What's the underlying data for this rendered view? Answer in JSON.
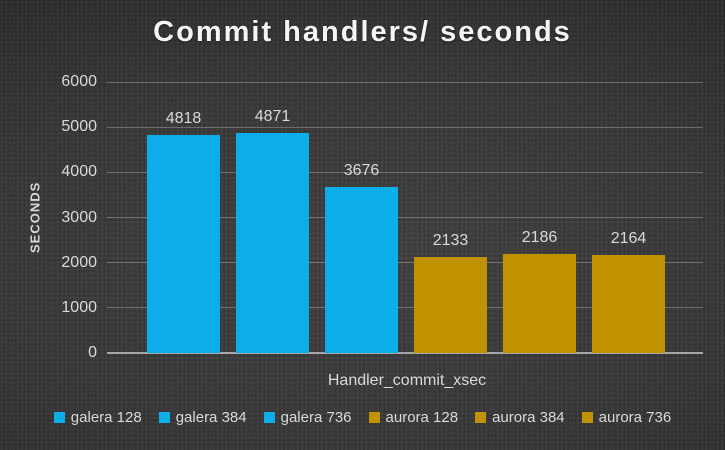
{
  "title": "Commit handlers/ seconds",
  "y_axis": {
    "title": "SECONDS"
  },
  "x_axis": {
    "category_label": "Handler_commit_xsec"
  },
  "legend": {
    "position": "bottom",
    "items": [
      {
        "label": "galera 128",
        "color": "#0CAEEA"
      },
      {
        "label": "galera 384",
        "color": "#0CAEEA"
      },
      {
        "label": "galera 736",
        "color": "#0CAEEA"
      },
      {
        "label": "aurora 128",
        "color": "#C19200"
      },
      {
        "label": "aurora 384",
        "color": "#C19200"
      },
      {
        "label": "aurora 736",
        "color": "#C19200"
      }
    ]
  },
  "chart_data": {
    "type": "bar",
    "title": "Commit handlers/ seconds",
    "categories": [
      "Handler_commit_xsec"
    ],
    "series": [
      {
        "name": "galera 128",
        "color": "#0CAEEA",
        "values": [
          4818
        ]
      },
      {
        "name": "galera 384",
        "color": "#0CAEEA",
        "values": [
          4871
        ]
      },
      {
        "name": "galera 736",
        "color": "#0CAEEA",
        "values": [
          3676
        ]
      },
      {
        "name": "aurora 128",
        "color": "#C19200",
        "values": [
          2133
        ]
      },
      {
        "name": "aurora 384",
        "color": "#C19200",
        "values": [
          2186
        ]
      },
      {
        "name": "aurora 736",
        "color": "#C19200",
        "values": [
          2164
        ]
      }
    ],
    "xlabel": "Handler_commit_xsec",
    "ylabel": "SECONDS",
    "ylim": [
      0,
      6000
    ],
    "yticks": [
      0,
      1000,
      2000,
      3000,
      4000,
      5000,
      6000
    ],
    "grid": true,
    "data_labels": true,
    "legend_position": "bottom"
  },
  "theme": {
    "background_center": "#414141",
    "background_edge": "#242424",
    "text_color": "#d9d9d9",
    "title_color": "#f5f5f5",
    "gridline_color": "#5e5e5e",
    "axis_line_color": "#a6a6a6",
    "galera_color": "#0CAEEA",
    "aurora_color": "#C19200"
  }
}
